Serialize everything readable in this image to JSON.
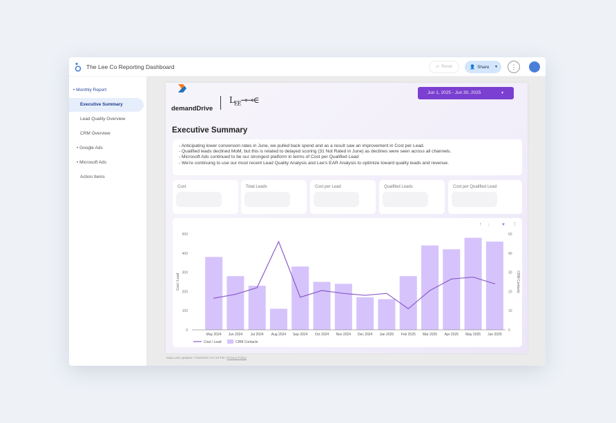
{
  "header": {
    "title": "The Lee Co Reporting Dashboard",
    "reset_label": "Reset",
    "share_label": "Share"
  },
  "sidebar": {
    "items": [
      {
        "label": "• Monthly Report"
      },
      {
        "label": "Executive Summary",
        "active": true
      },
      {
        "label": "Lead Quality Overview"
      },
      {
        "label": "CRM Overview"
      },
      {
        "label": "• Google Ads"
      },
      {
        "label": "• Microsoft Ads"
      },
      {
        "label": "Action Items"
      }
    ]
  },
  "report": {
    "date_range": "Jun 1, 2025 - Jun 30, 2025",
    "logo_text": "demandDrive",
    "title": "Executive Summary",
    "notes": [
      "- Anticipating lower conversion rates in June, we pulled back spend and as a result saw an improvement in Cost per Lead.",
      "- Qualified leads declined MoM, but this is related to delayed scoring (31 Not Rated in June) as declines were seen across all channels.",
      "- Microsoft Ads continued to be our strongest platform in terms of Cost per Qualified Lead",
      "- We're continuing to use our most recent Lead Quality Analysis and Lee's EAR Analysis to optimize toward quality leads and revenue."
    ],
    "kpis": [
      {
        "label": "Cost"
      },
      {
        "label": "Total Leads"
      },
      {
        "label": "Cost per Lead"
      },
      {
        "label": "Qualified Leads"
      },
      {
        "label": "Cost per Qualified Lead"
      }
    ],
    "footer": {
      "updated": "Data Last Updated: 7/15/2025 3:27:23 PM",
      "privacy": "Privacy Policy"
    }
  },
  "chart_data": {
    "type": "bar+line",
    "categories": [
      "May 2024",
      "Jun 2024",
      "Jul 2024",
      "Aug 2024",
      "Sep 2024",
      "Oct 2024",
      "Nov 2024",
      "Dec 2024",
      "Jan 2025",
      "Feb 2025",
      "Mar 2025",
      "Apr 2025",
      "May 2025",
      "Jun 2025"
    ],
    "series": [
      {
        "name": "Cost / Lead",
        "type": "line",
        "axis": "left",
        "color": "#8a5cc9",
        "values": [
          165,
          185,
          220,
          460,
          170,
          205,
          190,
          180,
          190,
          110,
          205,
          265,
          275,
          240
        ]
      },
      {
        "name": "CRM Contacts",
        "type": "bar",
        "axis": "right",
        "color": "#d6c3fb",
        "values": [
          38,
          28,
          23,
          11,
          33,
          25,
          24,
          17,
          16,
          28,
          44,
          42,
          48,
          46
        ]
      }
    ],
    "ylabel": "Cost / Lead",
    "y2label": "CRM Contacts",
    "ylim": [
      0,
      500
    ],
    "y2lim": [
      0,
      50
    ],
    "yticks": [
      0,
      100,
      200,
      300,
      400,
      500
    ],
    "y2ticks": [
      0,
      10,
      20,
      30,
      40,
      50
    ],
    "legend": "bottom-left"
  }
}
